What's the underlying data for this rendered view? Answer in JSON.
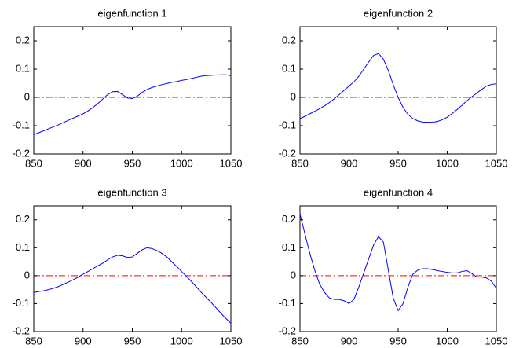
{
  "chart_data": [
    {
      "type": "line",
      "title": "eigenfunction 1",
      "x": [
        850,
        855,
        860,
        865,
        870,
        875,
        880,
        885,
        890,
        895,
        900,
        905,
        910,
        915,
        920,
        925,
        930,
        935,
        940,
        945,
        950,
        955,
        960,
        965,
        970,
        975,
        980,
        985,
        990,
        995,
        1000,
        1005,
        1010,
        1015,
        1020,
        1025,
        1030,
        1035,
        1040,
        1045,
        1050
      ],
      "series": [
        {
          "color": "#0000ff",
          "values": [
            -0.132,
            -0.125,
            -0.118,
            -0.111,
            -0.104,
            -0.097,
            -0.089,
            -0.081,
            -0.073,
            -0.066,
            -0.058,
            -0.048,
            -0.036,
            -0.022,
            -0.006,
            0.01,
            0.02,
            0.021,
            0.01,
            -0.002,
            -0.004,
            0.004,
            0.018,
            0.028,
            0.035,
            0.04,
            0.045,
            0.049,
            0.053,
            0.056,
            0.06,
            0.063,
            0.067,
            0.071,
            0.075,
            0.077,
            0.078,
            0.079,
            0.08,
            0.08,
            0.077
          ]
        }
      ],
      "hline": 0,
      "hline_color": "#ff0000",
      "xlim": [
        850,
        1050
      ],
      "xticks": [
        850,
        900,
        950,
        1000,
        1050
      ],
      "ylim": [
        -0.2,
        0.25
      ],
      "yticks": [
        -0.2,
        -0.1,
        0,
        0.1,
        0.2
      ]
    },
    {
      "type": "line",
      "title": "eigenfunction 2",
      "x": [
        850,
        855,
        860,
        865,
        870,
        875,
        880,
        885,
        890,
        895,
        900,
        905,
        910,
        915,
        920,
        925,
        930,
        935,
        940,
        945,
        950,
        955,
        960,
        965,
        970,
        975,
        980,
        985,
        990,
        995,
        1000,
        1005,
        1010,
        1015,
        1020,
        1025,
        1030,
        1035,
        1040,
        1045,
        1050
      ],
      "series": [
        {
          "color": "#0000ff",
          "values": [
            -0.075,
            -0.067,
            -0.058,
            -0.049,
            -0.04,
            -0.03,
            -0.018,
            -0.005,
            0.01,
            0.025,
            0.04,
            0.055,
            0.075,
            0.1,
            0.125,
            0.148,
            0.155,
            0.135,
            0.095,
            0.045,
            0.0,
            -0.035,
            -0.06,
            -0.075,
            -0.083,
            -0.087,
            -0.088,
            -0.088,
            -0.085,
            -0.079,
            -0.07,
            -0.057,
            -0.043,
            -0.028,
            -0.012,
            0.002,
            0.015,
            0.028,
            0.04,
            0.046,
            0.048
          ]
        }
      ],
      "hline": 0,
      "hline_color": "#ff0000",
      "xlim": [
        850,
        1050
      ],
      "xticks": [
        850,
        900,
        950,
        1000,
        1050
      ],
      "ylim": [
        -0.2,
        0.25
      ],
      "yticks": [
        -0.2,
        -0.1,
        0,
        0.1,
        0.2
      ]
    },
    {
      "type": "line",
      "title": "eigenfunction 3",
      "x": [
        850,
        855,
        860,
        865,
        870,
        875,
        880,
        885,
        890,
        895,
        900,
        905,
        910,
        915,
        920,
        925,
        930,
        935,
        940,
        945,
        950,
        955,
        960,
        965,
        970,
        975,
        980,
        985,
        990,
        995,
        1000,
        1005,
        1010,
        1015,
        1020,
        1025,
        1030,
        1035,
        1040,
        1045,
        1050
      ],
      "series": [
        {
          "color": "#0000ff",
          "values": [
            -0.06,
            -0.057,
            -0.054,
            -0.05,
            -0.045,
            -0.039,
            -0.031,
            -0.023,
            -0.015,
            -0.005,
            0.005,
            0.015,
            0.025,
            0.035,
            0.045,
            0.057,
            0.067,
            0.073,
            0.071,
            0.065,
            0.067,
            0.08,
            0.093,
            0.1,
            0.097,
            0.09,
            0.08,
            0.067,
            0.05,
            0.033,
            0.015,
            -0.003,
            -0.021,
            -0.04,
            -0.06,
            -0.078,
            -0.096,
            -0.115,
            -0.135,
            -0.153,
            -0.17
          ]
        }
      ],
      "hline": 0,
      "hline_color": "#ff0000",
      "xlim": [
        850,
        1050
      ],
      "xticks": [
        850,
        900,
        950,
        1000,
        1050
      ],
      "ylim": [
        -0.2,
        0.25
      ],
      "yticks": [
        -0.2,
        -0.1,
        0,
        0.1,
        0.2
      ]
    },
    {
      "type": "line",
      "title": "eigenfunction 4",
      "x": [
        850,
        855,
        860,
        865,
        870,
        875,
        880,
        885,
        890,
        895,
        900,
        905,
        910,
        915,
        920,
        925,
        930,
        935,
        940,
        945,
        950,
        955,
        960,
        965,
        970,
        975,
        980,
        985,
        990,
        995,
        1000,
        1005,
        1010,
        1015,
        1020,
        1025,
        1030,
        1035,
        1040,
        1045,
        1050
      ],
      "series": [
        {
          "color": "#0000ff",
          "values": [
            0.22,
            0.15,
            0.08,
            0.02,
            -0.03,
            -0.06,
            -0.08,
            -0.085,
            -0.085,
            -0.09,
            -0.1,
            -0.085,
            -0.04,
            0.01,
            0.06,
            0.11,
            0.14,
            0.12,
            0.02,
            -0.08,
            -0.125,
            -0.1,
            -0.04,
            0.005,
            0.02,
            0.025,
            0.025,
            0.022,
            0.018,
            0.015,
            0.012,
            0.01,
            0.01,
            0.015,
            0.018,
            0.008,
            -0.005,
            -0.005,
            -0.008,
            -0.02,
            -0.045
          ]
        }
      ],
      "hline": 0,
      "hline_color": "#ff0000",
      "xlim": [
        850,
        1050
      ],
      "xticks": [
        850,
        900,
        950,
        1000,
        1050
      ],
      "ylim": [
        -0.2,
        0.25
      ],
      "yticks": [
        -0.2,
        -0.1,
        0,
        0.1,
        0.2
      ]
    }
  ]
}
